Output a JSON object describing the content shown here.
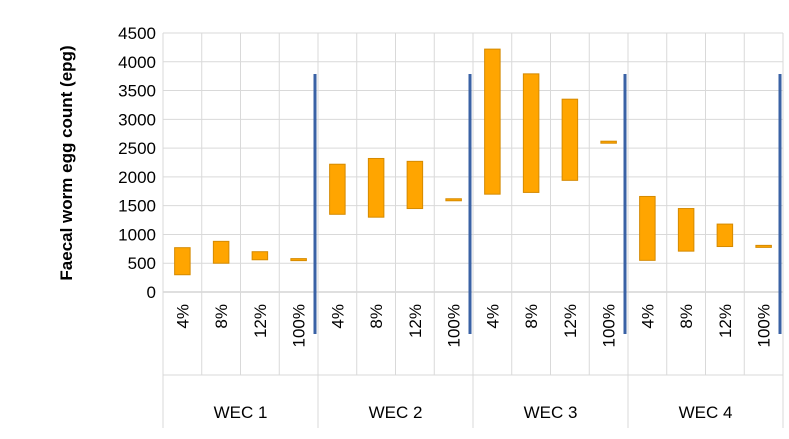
{
  "chart_data": {
    "type": "bar",
    "subtype": "floating-range",
    "ylabel": "Faecal worm egg count (epg)",
    "xlabel": "",
    "ylim": [
      0,
      4500
    ],
    "yticks": [
      0,
      500,
      1000,
      1500,
      2000,
      2500,
      3000,
      3500,
      4000,
      4500
    ],
    "ytick_labels": [
      "0",
      "500",
      "1000",
      "1500",
      "2000",
      "2500",
      "3000",
      "3500",
      "4000",
      "4500"
    ],
    "grid": true,
    "legend": "none",
    "bar_color": "#ffa500",
    "bar_edge_color": "#d58a00",
    "separator_color": "#3a62a5",
    "groups": [
      {
        "label": "WEC 1",
        "categories": [
          "4%",
          "8%",
          "12%",
          "100%"
        ],
        "low": [
          300,
          500,
          560,
          560
        ],
        "high": [
          770,
          880,
          700,
          580
        ]
      },
      {
        "label": "WEC 2",
        "categories": [
          "4%",
          "8%",
          "12%",
          "100%"
        ],
        "low": [
          1350,
          1300,
          1450,
          1600
        ],
        "high": [
          2220,
          2320,
          2270,
          1620
        ]
      },
      {
        "label": "WEC 3",
        "categories": [
          "4%",
          "8%",
          "12%",
          "100%"
        ],
        "low": [
          1700,
          1730,
          1940,
          2590
        ],
        "high": [
          4220,
          3790,
          3350,
          2620
        ]
      },
      {
        "label": "WEC 4",
        "categories": [
          "4%",
          "8%",
          "12%",
          "100%"
        ],
        "low": [
          550,
          710,
          790,
          790
        ],
        "high": [
          1660,
          1450,
          1180,
          810
        ]
      }
    ]
  }
}
